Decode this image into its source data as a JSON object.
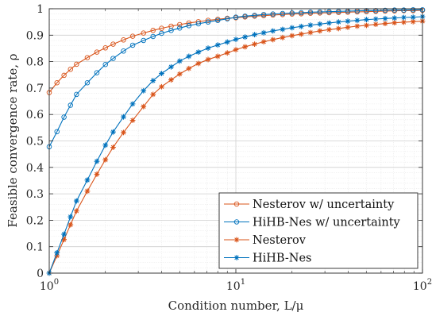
{
  "chart_data": {
    "type": "line",
    "xscale": "log",
    "xlim": [
      1,
      100
    ],
    "ylim": [
      0,
      1
    ],
    "grid": true,
    "minor_grid": true,
    "legend_position": "bottom-right",
    "xlabel": "Condition number, L/μ",
    "ylabel": "Feasible convergence rate, ρ",
    "x_ticks": [
      {
        "value": 1,
        "base": "10",
        "exp": "0"
      },
      {
        "value": 10,
        "base": "10",
        "exp": "1"
      },
      {
        "value": 100,
        "base": "10",
        "exp": "2"
      }
    ],
    "y_ticks": [
      "0",
      "0.1",
      "0.2",
      "0.3",
      "0.4",
      "0.5",
      "0.6",
      "0.7",
      "0.8",
      "0.9",
      "1"
    ],
    "x": [
      1,
      1.1,
      1.2,
      1.3,
      1.4,
      1.6,
      1.8,
      2,
      2.2,
      2.5,
      2.8,
      3.2,
      3.6,
      4,
      4.5,
      5,
      5.6,
      6.3,
      7.1,
      8,
      9,
      10,
      11.2,
      12.6,
      14.1,
      15.8,
      17.8,
      20,
      22.4,
      25.1,
      28.2,
      31.6,
      35.5,
      39.8,
      44.7,
      50.1,
      56.2,
      63.1,
      70.8,
      79.4,
      89.1,
      100
    ],
    "series": [
      {
        "name": "Nesterov w/ uncertainty",
        "color": "#d9541a",
        "marker": "circle",
        "values": [
          0.683,
          0.72,
          0.748,
          0.771,
          0.79,
          0.815,
          0.836,
          0.852,
          0.866,
          0.882,
          0.896,
          0.908,
          0.918,
          0.926,
          0.934,
          0.94,
          0.946,
          0.951,
          0.956,
          0.96,
          0.964,
          0.966,
          0.969,
          0.972,
          0.974,
          0.976,
          0.978,
          0.98,
          0.981,
          0.983,
          0.984,
          0.985,
          0.986,
          0.987,
          0.988,
          0.989,
          0.99,
          0.991,
          0.992,
          0.993,
          0.993,
          0.994
        ]
      },
      {
        "name": "HiHB-Nes w/ uncertainty",
        "color": "#0072bd",
        "marker": "circle",
        "values": [
          0.478,
          0.535,
          0.59,
          0.635,
          0.676,
          0.72,
          0.758,
          0.789,
          0.812,
          0.84,
          0.862,
          0.88,
          0.895,
          0.907,
          0.918,
          0.927,
          0.936,
          0.943,
          0.95,
          0.956,
          0.962,
          0.968,
          0.972,
          0.975,
          0.978,
          0.98,
          0.982,
          0.984,
          0.985,
          0.987,
          0.988,
          0.989,
          0.99,
          0.991,
          0.992,
          0.993,
          0.993,
          0.994,
          0.995,
          0.995,
          0.996,
          0.996
        ]
      },
      {
        "name": "Nesterov",
        "color": "#d9541a",
        "marker": "star",
        "values": [
          0.0,
          0.066,
          0.127,
          0.183,
          0.235,
          0.31,
          0.374,
          0.429,
          0.476,
          0.532,
          0.578,
          0.63,
          0.676,
          0.705,
          0.731,
          0.753,
          0.774,
          0.793,
          0.808,
          0.82,
          0.833,
          0.845,
          0.856,
          0.866,
          0.875,
          0.883,
          0.891,
          0.898,
          0.904,
          0.91,
          0.916,
          0.921,
          0.925,
          0.93,
          0.934,
          0.937,
          0.941,
          0.944,
          0.947,
          0.949,
          0.951,
          0.953
        ]
      },
      {
        "name": "HiHB-Nes",
        "color": "#0072bd",
        "marker": "star",
        "values": [
          0.0,
          0.077,
          0.147,
          0.213,
          0.273,
          0.352,
          0.423,
          0.484,
          0.534,
          0.591,
          0.64,
          0.69,
          0.728,
          0.755,
          0.78,
          0.802,
          0.82,
          0.836,
          0.851,
          0.863,
          0.874,
          0.884,
          0.893,
          0.902,
          0.909,
          0.916,
          0.922,
          0.928,
          0.933,
          0.938,
          0.942,
          0.946,
          0.95,
          0.953,
          0.956,
          0.959,
          0.961,
          0.963,
          0.965,
          0.967,
          0.968,
          0.97
        ]
      }
    ]
  }
}
